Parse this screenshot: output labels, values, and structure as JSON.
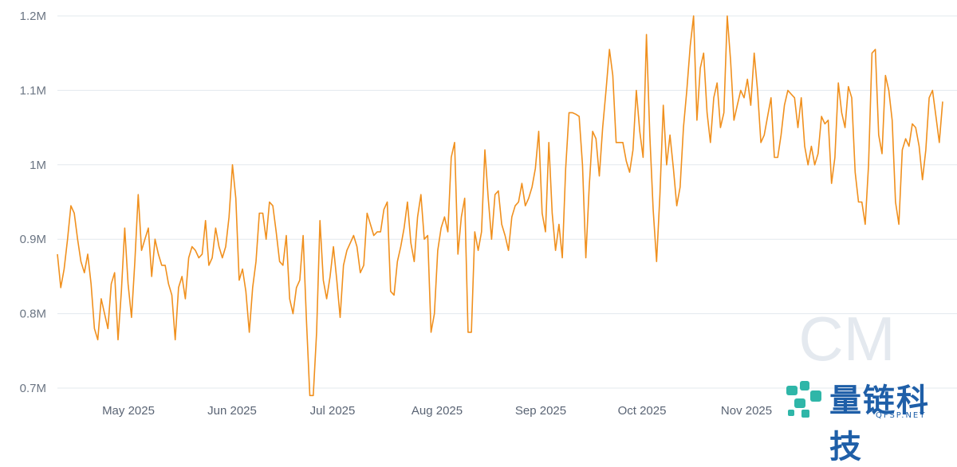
{
  "chart_data": {
    "type": "line",
    "title": "",
    "xlabel": "",
    "ylabel": "",
    "ylim": [
      0.69,
      1.21
    ],
    "y_ticks": [
      {
        "value": 0.7,
        "label": "0.7M"
      },
      {
        "value": 0.8,
        "label": "0.8M"
      },
      {
        "value": 0.9,
        "label": "0.9M"
      },
      {
        "value": 1.0,
        "label": "1M"
      },
      {
        "value": 1.1,
        "label": "1.1M"
      },
      {
        "value": 1.2,
        "label": "1.2M"
      }
    ],
    "x_ticks": [
      "May 2025",
      "Jun 2025",
      "Jul 2025",
      "Aug 2025",
      "Sep 2025",
      "Oct 2025",
      "Nov 2025"
    ],
    "grid": true,
    "color": "#f0901e",
    "series": [
      {
        "values": [
          0.88,
          0.835,
          0.86,
          0.9,
          0.945,
          0.935,
          0.9,
          0.87,
          0.855,
          0.88,
          0.84,
          0.78,
          0.765,
          0.82,
          0.8,
          0.78,
          0.84,
          0.855,
          0.765,
          0.83,
          0.915,
          0.84,
          0.795,
          0.87,
          0.96,
          0.885,
          0.9,
          0.915,
          0.85,
          0.9,
          0.88,
          0.865,
          0.865,
          0.84,
          0.825,
          0.765,
          0.835,
          0.85,
          0.82,
          0.875,
          0.89,
          0.885,
          0.875,
          0.88,
          0.925,
          0.865,
          0.875,
          0.915,
          0.89,
          0.875,
          0.89,
          0.93,
          1.0,
          0.955,
          0.845,
          0.86,
          0.83,
          0.775,
          0.835,
          0.87,
          0.935,
          0.935,
          0.9,
          0.95,
          0.945,
          0.91,
          0.87,
          0.865,
          0.905,
          0.82,
          0.8,
          0.835,
          0.845,
          0.905,
          0.79,
          0.69,
          0.69,
          0.775,
          0.925,
          0.845,
          0.82,
          0.85,
          0.89,
          0.845,
          0.795,
          0.865,
          0.885,
          0.895,
          0.905,
          0.89,
          0.855,
          0.865,
          0.935,
          0.92,
          0.905,
          0.91,
          0.91,
          0.94,
          0.95,
          0.83,
          0.825,
          0.87,
          0.89,
          0.915,
          0.95,
          0.895,
          0.87,
          0.93,
          0.96,
          0.9,
          0.905,
          0.775,
          0.8,
          0.885,
          0.915,
          0.93,
          0.91,
          1.01,
          1.03,
          0.88,
          0.93,
          0.955,
          0.775,
          0.775,
          0.91,
          0.885,
          0.91,
          1.02,
          0.955,
          0.9,
          0.96,
          0.965,
          0.92,
          0.905,
          0.885,
          0.93,
          0.945,
          0.95,
          0.975,
          0.945,
          0.955,
          0.97,
          0.995,
          1.045,
          0.935,
          0.91,
          1.03,
          0.935,
          0.885,
          0.92,
          0.875,
          0.995,
          1.07,
          1.07,
          1.068,
          1.065,
          1.0,
          0.875,
          0.97,
          1.045,
          1.035,
          0.985,
          1.05,
          1.1,
          1.155,
          1.12,
          1.03,
          1.03,
          1.03,
          1.005,
          0.99,
          1.02,
          1.1,
          1.045,
          1.01,
          1.175,
          1.04,
          0.94,
          0.87,
          0.96,
          1.08,
          1.0,
          1.04,
          0.995,
          0.945,
          0.97,
          1.05,
          1.1,
          1.16,
          1.2,
          1.06,
          1.13,
          1.15,
          1.07,
          1.03,
          1.09,
          1.11,
          1.05,
          1.07,
          1.2,
          1.14,
          1.06,
          1.08,
          1.1,
          1.09,
          1.115,
          1.08,
          1.15,
          1.1,
          1.03,
          1.04,
          1.065,
          1.09,
          1.01,
          1.01,
          1.04,
          1.08,
          1.1,
          1.095,
          1.09,
          1.05,
          1.09,
          1.025,
          1.0,
          1.025,
          1.0,
          1.015,
          1.065,
          1.055,
          1.06,
          0.975,
          1.01,
          1.11,
          1.07,
          1.05,
          1.105,
          1.09,
          0.99,
          0.95,
          0.95,
          0.92,
          1.0,
          1.15,
          1.155,
          1.04,
          1.015,
          1.12,
          1.1,
          1.06,
          0.95,
          0.92,
          1.02,
          1.035,
          1.025,
          1.055,
          1.05,
          1.025,
          0.98,
          1.02,
          1.09,
          1.1,
          1.065,
          1.03,
          1.085
        ]
      }
    ]
  },
  "watermark": {
    "logo_text": "CM",
    "brand_cn": "量链科技",
    "brand_en": "QFSP.NET"
  }
}
